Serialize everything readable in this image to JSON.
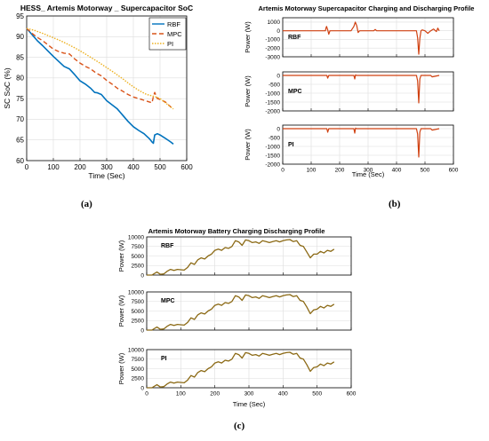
{
  "colors": {
    "rbf": "#0072bd",
    "mpc": "#d95319",
    "pi": "#edb120",
    "power": "#d04010",
    "battery": "#8b6914",
    "grid": "#dddddd"
  },
  "captions": {
    "a": "(a)",
    "b": "(b)",
    "c": "(c)"
  },
  "chart_data": [
    {
      "id": "a",
      "type": "line",
      "title": "HESS_ Artemis Motorway _ Supercapacitor SoC",
      "xlabel": "Time (Sec)",
      "ylabel": "SC SoC (%)",
      "xlim": [
        0,
        600
      ],
      "ylim": [
        60,
        95
      ],
      "xticks": [
        0,
        100,
        200,
        300,
        400,
        500,
        600
      ],
      "yticks": [
        60,
        65,
        70,
        75,
        80,
        85,
        90,
        95
      ],
      "grid": true,
      "legend": "top-right",
      "series": [
        {
          "name": "RBF",
          "color_key": "rbf",
          "style": "solid",
          "x": [
            0,
            20,
            40,
            60,
            80,
            100,
            120,
            140,
            160,
            180,
            200,
            220,
            240,
            255,
            265,
            280,
            300,
            320,
            340,
            360,
            380,
            400,
            420,
            440,
            460,
            470,
            475,
            480,
            490,
            500,
            520,
            540,
            550
          ],
          "y": [
            92,
            90.5,
            89,
            87.8,
            86.5,
            85.2,
            84,
            82.8,
            82.2,
            80.8,
            79.3,
            78.5,
            77.5,
            76.5,
            76.4,
            76,
            74.5,
            73.5,
            72.5,
            71,
            69.5,
            68.2,
            67.3,
            66.5,
            65.3,
            64.5,
            64.2,
            66.2,
            66.5,
            66.2,
            65.4,
            64.5,
            64
          ]
        },
        {
          "name": "MPC",
          "color_key": "mpc",
          "style": "dashed",
          "x": [
            0,
            20,
            40,
            60,
            80,
            100,
            120,
            140,
            160,
            180,
            200,
            220,
            240,
            260,
            280,
            300,
            320,
            340,
            360,
            380,
            400,
            420,
            440,
            460,
            470,
            475,
            480,
            490,
            500,
            520,
            540,
            550
          ],
          "y": [
            92,
            90.8,
            89.8,
            89,
            88,
            87,
            86.4,
            86,
            85.8,
            84.6,
            83.6,
            82.8,
            82.2,
            81.2,
            80.5,
            79.4,
            78.5,
            77.5,
            76.8,
            76,
            75.4,
            75,
            74.6,
            74.2,
            74,
            75.5,
            76.5,
            75,
            74.8,
            74.2,
            73,
            72.5
          ]
        },
        {
          "name": "PI",
          "color_key": "pi",
          "style": "dotted",
          "x": [
            0,
            30,
            60,
            90,
            120,
            150,
            180,
            210,
            240,
            270,
            300,
            330,
            360,
            390,
            420,
            450,
            480,
            500,
            520,
            540,
            550
          ],
          "y": [
            92,
            91.5,
            90.8,
            90,
            89.2,
            88.3,
            87.3,
            86.2,
            85,
            83.8,
            82.5,
            81.2,
            79.8,
            78.3,
            77,
            76,
            75.5,
            75,
            74,
            73,
            72.5
          ]
        }
      ]
    },
    {
      "id": "b",
      "type": "line",
      "title": "Artemis Motorway Supercapacitor Charging and Discharging Profile",
      "xlabel": "Time (Sec)",
      "ylabel": "Power (W)",
      "xlim": [
        0,
        600
      ],
      "xticks": [
        0,
        100,
        200,
        300,
        400,
        500,
        600
      ],
      "grid": true,
      "subplots": [
        {
          "label": "RBF",
          "ylim": [
            -3000,
            1500
          ],
          "yticks": [
            1000,
            0,
            -1000,
            -2000,
            -3000
          ],
          "x": [
            0,
            150,
            152,
            154,
            158,
            162,
            166,
            170,
            240,
            250,
            255,
            260,
            265,
            270,
            320,
            325,
            330,
            450,
            470,
            474,
            478,
            482,
            486,
            490,
            500,
            510,
            520,
            530,
            540,
            545,
            550
          ],
          "y": [
            0,
            0,
            300,
            500,
            100,
            -400,
            0,
            0,
            0,
            500,
            1000,
            600,
            -200,
            0,
            0,
            150,
            0,
            0,
            0,
            -800,
            -2700,
            -900,
            0,
            100,
            0,
            -300,
            0,
            200,
            -100,
            300,
            0
          ]
        },
        {
          "label": "MPC",
          "ylim": [
            -2000,
            200
          ],
          "yticks": [
            0,
            -500,
            -1000,
            -1500,
            -2000
          ],
          "x": [
            0,
            155,
            158,
            162,
            250,
            253,
            256,
            260,
            470,
            474,
            478,
            482,
            486,
            490,
            520,
            525,
            550
          ],
          "y": [
            0,
            0,
            -150,
            0,
            0,
            -200,
            30,
            0,
            0,
            -300,
            -1550,
            -200,
            0,
            0,
            0,
            -80,
            0
          ]
        },
        {
          "label": "PI",
          "ylim": [
            -2000,
            200
          ],
          "yticks": [
            0,
            -500,
            -1000,
            -1500,
            -2000
          ],
          "x": [
            0,
            155,
            158,
            162,
            250,
            253,
            256,
            260,
            470,
            474,
            478,
            482,
            486,
            490,
            520,
            525,
            550
          ],
          "y": [
            0,
            0,
            -200,
            0,
            0,
            -250,
            30,
            0,
            0,
            -300,
            -1600,
            -200,
            0,
            0,
            0,
            -80,
            0
          ]
        }
      ]
    },
    {
      "id": "c",
      "type": "line",
      "title": "Artemis Motorway Battery Charging Discharging Profile",
      "xlabel": "Time (Sec)",
      "ylabel": "Power (W)",
      "xlim": [
        0,
        600
      ],
      "xticks": [
        0,
        100,
        200,
        300,
        400,
        500,
        600
      ],
      "grid": true,
      "subplots": [
        {
          "label": "RBF",
          "ylim": [
            0,
            10000
          ],
          "yticks": [
            0,
            2500,
            5000,
            7500,
            10000
          ],
          "x": [
            0,
            15,
            30,
            40,
            50,
            60,
            70,
            80,
            90,
            100,
            110,
            120,
            130,
            140,
            150,
            160,
            170,
            180,
            190,
            200,
            210,
            220,
            230,
            240,
            250,
            260,
            270,
            280,
            290,
            300,
            310,
            320,
            330,
            340,
            350,
            360,
            370,
            380,
            390,
            400,
            410,
            420,
            430,
            440,
            450,
            460,
            470,
            480,
            490,
            500,
            510,
            520,
            530,
            540,
            550
          ],
          "y": [
            0,
            0,
            800,
            200,
            300,
            1000,
            1500,
            1200,
            1500,
            1400,
            1300,
            2000,
            3200,
            2800,
            4000,
            4500,
            4200,
            5000,
            5500,
            6500,
            6800,
            6500,
            7200,
            7000,
            7500,
            9000,
            8700,
            7800,
            9200,
            9000,
            8500,
            8700,
            8300,
            9000,
            8800,
            8500,
            8800,
            9000,
            8700,
            9000,
            9200,
            9300,
            8800,
            9000,
            7800,
            7500,
            6000,
            4500,
            5500,
            5500,
            6200,
            5800,
            6500,
            6200,
            6800
          ]
        },
        {
          "label": "MPC",
          "ylim": [
            0,
            10000
          ],
          "yticks": [
            0,
            2500,
            5000,
            7500,
            10000
          ],
          "x": [
            0,
            15,
            30,
            40,
            50,
            60,
            70,
            80,
            90,
            100,
            110,
            120,
            130,
            140,
            150,
            160,
            170,
            180,
            190,
            200,
            210,
            220,
            230,
            240,
            250,
            260,
            270,
            280,
            290,
            300,
            310,
            320,
            330,
            340,
            350,
            360,
            370,
            380,
            390,
            400,
            410,
            420,
            430,
            440,
            450,
            460,
            470,
            480,
            490,
            500,
            510,
            520,
            530,
            540,
            550
          ],
          "y": [
            0,
            0,
            800,
            200,
            300,
            1000,
            1500,
            1200,
            1500,
            1400,
            1300,
            2000,
            3200,
            2800,
            4000,
            4500,
            4200,
            5000,
            5500,
            6500,
            6800,
            6500,
            7200,
            7000,
            7500,
            9000,
            8700,
            7800,
            9200,
            9000,
            8500,
            8700,
            8300,
            9000,
            8800,
            8500,
            8800,
            9000,
            8700,
            9000,
            9200,
            9300,
            8800,
            9000,
            7800,
            7500,
            6000,
            4300,
            5300,
            5500,
            6200,
            5800,
            6500,
            6200,
            6800
          ]
        },
        {
          "label": "PI",
          "ylim": [
            0,
            10000
          ],
          "yticks": [
            0,
            2500,
            5000,
            7500,
            10000
          ],
          "x": [
            0,
            15,
            30,
            40,
            50,
            60,
            70,
            80,
            90,
            100,
            110,
            120,
            130,
            140,
            150,
            160,
            170,
            180,
            190,
            200,
            210,
            220,
            230,
            240,
            250,
            260,
            270,
            280,
            290,
            300,
            310,
            320,
            330,
            340,
            350,
            360,
            370,
            380,
            390,
            400,
            410,
            420,
            430,
            440,
            450,
            460,
            470,
            480,
            490,
            500,
            510,
            520,
            530,
            540,
            550
          ],
          "y": [
            0,
            0,
            800,
            200,
            300,
            1000,
            1500,
            1200,
            1500,
            1400,
            1300,
            2000,
            3200,
            2800,
            4000,
            4500,
            4200,
            5000,
            5500,
            6500,
            6800,
            6500,
            7200,
            7000,
            7500,
            9000,
            8700,
            7800,
            9200,
            9000,
            8500,
            8700,
            8300,
            9000,
            8800,
            8500,
            8800,
            9000,
            8700,
            9000,
            9200,
            9300,
            8800,
            9000,
            7800,
            7500,
            6000,
            4300,
            5300,
            5500,
            6200,
            5800,
            6500,
            6200,
            6800
          ]
        }
      ]
    }
  ]
}
